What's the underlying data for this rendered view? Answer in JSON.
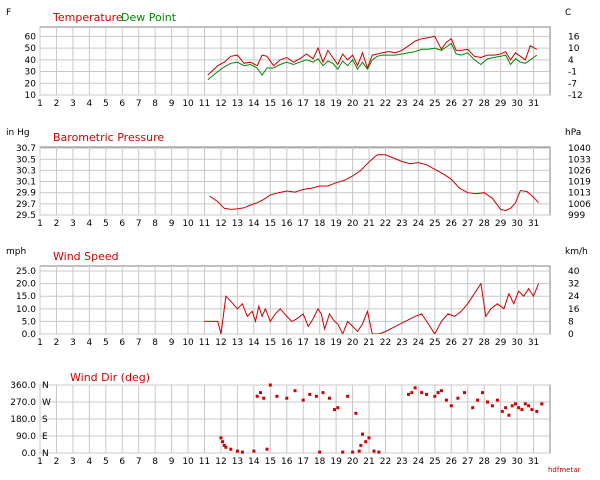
{
  "colors": {
    "red": "#cc0000",
    "green": "#008800",
    "grid": "#c8c8c8",
    "plot_border": "#808080",
    "text": "#000000"
  },
  "footer_label": "hdfmetar",
  "chart_data": [
    {
      "type": "line",
      "title": "Temperature",
      "left_unit": "F",
      "right_unit": "C",
      "x_ticks": [
        1,
        2,
        3,
        4,
        5,
        6,
        7,
        8,
        9,
        10,
        11,
        12,
        13,
        14,
        15,
        16,
        17,
        18,
        19,
        20,
        21,
        22,
        23,
        24,
        25,
        26,
        27,
        28,
        29,
        30,
        31
      ],
      "xlim": [
        1,
        32
      ],
      "ylim": [
        10,
        68
      ],
      "left_ticks": [
        10,
        20,
        30,
        40,
        50,
        60
      ],
      "right_ticks": [
        -12,
        -7,
        -1,
        4,
        10,
        16
      ],
      "grid": true,
      "series": [
        {
          "name": "Temperature",
          "color": "red",
          "x": [
            11.2,
            11.8,
            12.2,
            12.6,
            13.0,
            13.4,
            13.8,
            14.2,
            14.5,
            14.8,
            15.2,
            15.6,
            16.0,
            16.4,
            16.8,
            17.2,
            17.6,
            17.9,
            18.2,
            18.5,
            18.8,
            19.1,
            19.4,
            19.7,
            20.0,
            20.3,
            20.6,
            20.9,
            21.2,
            21.5,
            21.8,
            22.2,
            22.6,
            23.0,
            23.4,
            23.8,
            24.2,
            24.6,
            25.0,
            25.4,
            25.7,
            26.0,
            26.3,
            26.6,
            27.0,
            27.4,
            27.8,
            28.2,
            28.6,
            29.0,
            29.3,
            29.6,
            29.9,
            30.2,
            30.5,
            30.8,
            31.2
          ],
          "y": [
            27,
            35,
            38,
            43,
            44,
            37,
            38,
            35,
            44,
            43,
            35,
            40,
            42,
            38,
            41,
            45,
            41,
            50,
            38,
            48,
            42,
            36,
            45,
            40,
            44,
            35,
            46,
            33,
            44,
            45,
            46,
            47,
            46,
            48,
            52,
            56,
            58,
            59,
            60,
            49,
            55,
            58,
            48,
            48,
            49,
            43,
            42,
            44,
            44,
            45,
            47,
            40,
            46,
            43,
            40,
            52,
            49
          ]
        },
        {
          "name": "Dew Point",
          "color": "green",
          "x": [
            11.2,
            11.8,
            12.2,
            12.6,
            13.0,
            13.4,
            13.8,
            14.2,
            14.5,
            14.8,
            15.2,
            15.6,
            16.0,
            16.4,
            16.8,
            17.2,
            17.6,
            17.9,
            18.2,
            18.5,
            18.8,
            19.1,
            19.4,
            19.7,
            20.0,
            20.3,
            20.6,
            20.9,
            21.2,
            21.5,
            21.8,
            22.2,
            22.6,
            23.0,
            23.4,
            23.8,
            24.2,
            24.6,
            25.0,
            25.4,
            25.7,
            26.0,
            26.3,
            26.6,
            27.0,
            27.4,
            27.8,
            28.2,
            28.6,
            29.0,
            29.3,
            29.6,
            29.9,
            30.2,
            30.5,
            30.8,
            31.2
          ],
          "y": [
            23,
            30,
            34,
            37,
            38,
            35,
            36,
            33,
            27,
            33,
            33,
            36,
            38,
            36,
            38,
            40,
            38,
            41,
            35,
            39,
            37,
            32,
            39,
            35,
            40,
            32,
            38,
            32,
            40,
            43,
            44,
            44,
            44,
            45,
            46,
            47,
            49,
            49,
            50,
            48,
            51,
            54,
            45,
            44,
            46,
            40,
            36,
            41,
            42,
            43,
            44,
            36,
            41,
            38,
            37,
            40,
            44
          ]
        }
      ]
    },
    {
      "type": "line",
      "title": "Barometric Pressure",
      "left_unit": "in Hg",
      "right_unit": "hPa",
      "x_ticks": [
        1,
        2,
        3,
        4,
        5,
        6,
        7,
        8,
        9,
        10,
        11,
        12,
        13,
        14,
        15,
        16,
        17,
        18,
        19,
        20,
        21,
        22,
        23,
        24,
        25,
        26,
        27,
        28,
        29,
        30,
        31
      ],
      "xlim": [
        1,
        32
      ],
      "ylim": [
        29.5,
        30.72
      ],
      "left_ticks": [
        "29.5",
        "29.7",
        "29.9",
        "30.1",
        "30.3",
        "30.5",
        "30.7"
      ],
      "right_ticks": [
        "999",
        "1006",
        "1013",
        "1019",
        "1026",
        "1033",
        "1040"
      ],
      "grid": true,
      "series": [
        {
          "name": "Barometric Pressure",
          "color": "red",
          "x": [
            11.3,
            11.8,
            12.2,
            12.6,
            13.0,
            13.4,
            13.8,
            14.2,
            14.6,
            15.0,
            15.5,
            16.0,
            16.5,
            17.0,
            17.5,
            18.0,
            18.5,
            19.0,
            19.5,
            20.0,
            20.5,
            21.0,
            21.5,
            22.0,
            22.5,
            23.0,
            23.5,
            24.0,
            24.5,
            25.0,
            25.5,
            26.0,
            26.5,
            27.0,
            27.5,
            28.0,
            28.5,
            29.0,
            29.3,
            29.6,
            29.9,
            30.2,
            30.6,
            31.0,
            31.3
          ],
          "y": [
            29.84,
            29.74,
            29.62,
            29.6,
            29.61,
            29.63,
            29.68,
            29.72,
            29.78,
            29.86,
            29.9,
            29.93,
            29.91,
            29.96,
            29.98,
            30.02,
            30.02,
            30.08,
            30.12,
            30.2,
            30.3,
            30.45,
            30.58,
            30.58,
            30.52,
            30.46,
            30.42,
            30.44,
            30.4,
            30.32,
            30.24,
            30.14,
            29.98,
            29.9,
            29.88,
            29.9,
            29.8,
            29.6,
            29.58,
            29.62,
            29.72,
            29.94,
            29.92,
            29.82,
            29.72
          ]
        }
      ]
    },
    {
      "type": "line",
      "title": "Wind Speed",
      "left_unit": "mph",
      "right_unit": "km/h",
      "x_ticks": [
        1,
        2,
        3,
        4,
        5,
        6,
        7,
        8,
        9,
        10,
        11,
        12,
        13,
        14,
        15,
        16,
        17,
        18,
        19,
        20,
        21,
        22,
        23,
        24,
        25,
        26,
        27,
        28,
        29,
        30,
        31
      ],
      "xlim": [
        1,
        32
      ],
      "ylim": [
        0,
        27
      ],
      "left_ticks": [
        "0.0",
        "5.0",
        "10.0",
        "15.0",
        "20.0",
        "25.0"
      ],
      "right_ticks": [
        0,
        8,
        16,
        24,
        32,
        40
      ],
      "grid": true,
      "series": [
        {
          "name": "Wind Speed",
          "color": "red",
          "x": [
            11.0,
            11.8,
            12.0,
            12.3,
            12.6,
            13.0,
            13.3,
            13.6,
            13.9,
            14.1,
            14.3,
            14.5,
            14.7,
            15.0,
            15.3,
            15.6,
            16.0,
            16.3,
            16.6,
            17.0,
            17.3,
            17.6,
            17.9,
            18.1,
            18.3,
            18.6,
            18.9,
            19.1,
            19.4,
            19.7,
            20.0,
            20.3,
            20.6,
            20.9,
            21.2,
            21.6,
            22.0,
            22.6,
            23.2,
            23.8,
            24.2,
            24.6,
            25.0,
            25.4,
            25.8,
            26.2,
            26.6,
            27.0,
            27.4,
            27.8,
            28.1,
            28.4,
            28.8,
            29.2,
            29.5,
            29.8,
            30.1,
            30.4,
            30.7,
            31.0,
            31.3
          ],
          "y": [
            5,
            5,
            0,
            15,
            13,
            10,
            12,
            7,
            9,
            5,
            11,
            7,
            10,
            5,
            8,
            10,
            7,
            5,
            6,
            8,
            3,
            6,
            10,
            8,
            2,
            8,
            5,
            4,
            0,
            5,
            3,
            1,
            4,
            9,
            0,
            0,
            1,
            3,
            5,
            7,
            8,
            4,
            0,
            5,
            8,
            7,
            9,
            12,
            16,
            20,
            7,
            10,
            12,
            10,
            16,
            12,
            17,
            15,
            18,
            15,
            20
          ]
        }
      ]
    },
    {
      "type": "scatter",
      "title": "Wind Dir (deg)",
      "left_unit": "",
      "right_unit": "",
      "x_ticks": [
        1,
        2,
        3,
        4,
        5,
        6,
        7,
        8,
        9,
        10,
        11,
        12,
        13,
        14,
        15,
        16,
        17,
        18,
        19,
        20,
        21,
        22,
        23,
        24,
        25,
        26,
        27,
        28,
        29,
        30,
        31
      ],
      "xlim": [
        1,
        32
      ],
      "ylim": [
        0,
        360
      ],
      "left_ticks": [
        "0.0",
        "90.0",
        "180.0",
        "270.0",
        "360.0"
      ],
      "compass_labels": [
        "N",
        "E",
        "S",
        "W",
        "N"
      ],
      "grid": true,
      "series": [
        {
          "name": "Wind Dir",
          "color": "red",
          "x": [
            12.0,
            12.1,
            12.2,
            12.3,
            12.6,
            13.0,
            13.3,
            14.0,
            14.2,
            14.4,
            14.6,
            14.8,
            15.0,
            15.4,
            16.0,
            16.5,
            17.0,
            17.4,
            17.8,
            18.0,
            18.2,
            18.6,
            18.9,
            19.1,
            19.4,
            19.7,
            20.0,
            20.2,
            20.4,
            20.5,
            20.6,
            20.8,
            21.0,
            21.3,
            21.6,
            23.4,
            23.6,
            23.8,
            24.2,
            24.5,
            25.0,
            25.2,
            25.4,
            25.7,
            26.0,
            26.4,
            26.8,
            27.3,
            27.6,
            27.9,
            28.2,
            28.5,
            28.8,
            29.1,
            29.3,
            29.5,
            29.7,
            29.9,
            30.1,
            30.3,
            30.5,
            30.7,
            30.9,
            31.2,
            31.5
          ],
          "y": [
            80,
            60,
            40,
            30,
            20,
            10,
            5,
            10,
            300,
            320,
            290,
            20,
            360,
            300,
            290,
            330,
            280,
            310,
            300,
            5,
            320,
            290,
            230,
            240,
            5,
            300,
            5,
            210,
            10,
            40,
            100,
            60,
            80,
            10,
            5,
            310,
            320,
            345,
            320,
            310,
            300,
            320,
            330,
            280,
            250,
            290,
            320,
            240,
            280,
            320,
            270,
            250,
            280,
            220,
            240,
            200,
            250,
            260,
            240,
            230,
            260,
            250,
            230,
            220,
            260
          ]
        }
      ]
    }
  ]
}
